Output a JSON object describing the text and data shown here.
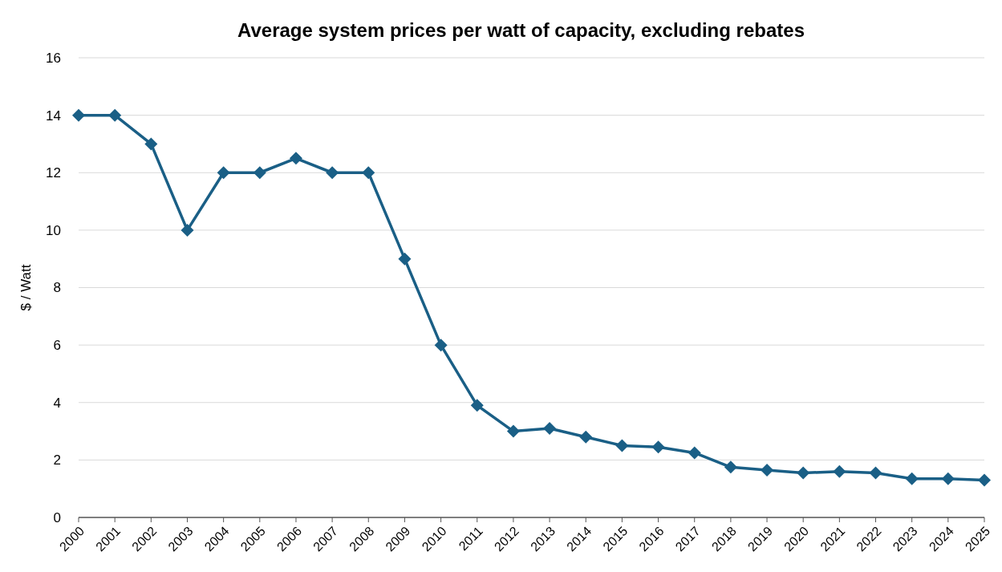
{
  "chart_data": {
    "type": "line",
    "title": "Average system prices per watt of capacity, excluding rebates",
    "ylabel": "$ / Watt",
    "categories": [
      "2000",
      "2001",
      "2002",
      "2003",
      "2004",
      "2005",
      "2006",
      "2007",
      "2008",
      "2009",
      "2010",
      "2011",
      "2012",
      "2013",
      "2014",
      "2015",
      "2016",
      "2017",
      "2018",
      "2019",
      "2020",
      "2021",
      "2022",
      "2023",
      "2024",
      "2025"
    ],
    "series": [
      {
        "color": "#1a5f86",
        "values": [
          14,
          14,
          13,
          10,
          12,
          12,
          12.5,
          12,
          12,
          9,
          6,
          3.9,
          3,
          3.1,
          2.8,
          2.5,
          2.45,
          2.25,
          1.75,
          1.65,
          1.55,
          1.6,
          1.55,
          1.35,
          1.35,
          1.3
        ]
      }
    ],
    "ylim": [
      0,
      16
    ],
    "yticks": [
      0,
      2,
      4,
      6,
      8,
      10,
      12,
      14,
      16
    ],
    "grid": "y",
    "marker": "diamond",
    "line_style": "solid"
  }
}
